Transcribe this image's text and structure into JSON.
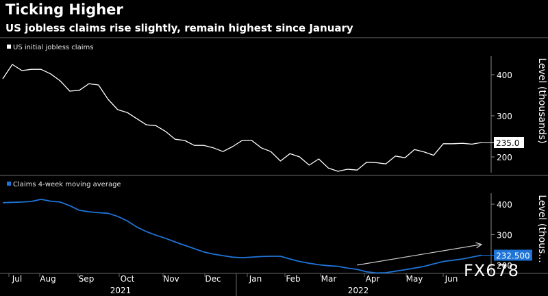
{
  "header": {
    "title": "Ticking Higher",
    "subtitle": "US jobless claims rise slightly, remain highest since January"
  },
  "watermark": "FX678",
  "colors": {
    "initial": "#ffffff",
    "average": "#1f74d8",
    "background": "#000000"
  },
  "chart_data": {
    "type": "line",
    "x_ticks": [
      "Jul",
      "Aug",
      "Sep",
      "Oct",
      "Nov",
      "Dec",
      "Jan",
      "Feb",
      "Mar",
      "Apr",
      "May",
      "Jun"
    ],
    "year_labels": [
      "2021",
      "2022"
    ],
    "panels": [
      {
        "legend": "US initial jobless claims",
        "ylabel": "Level (thousands)",
        "yticks": [
          200,
          300,
          400
        ],
        "ylim": [
          160,
          435
        ],
        "last_value_label": "235.0",
        "series": {
          "name": "US initial jobless claims",
          "color": "#ffffff",
          "values": [
            390,
            425,
            410,
            413,
            413,
            402,
            385,
            360,
            362,
            378,
            375,
            340,
            315,
            308,
            293,
            278,
            276,
            262,
            243,
            240,
            228,
            228,
            222,
            213,
            225,
            240,
            240,
            222,
            213,
            190,
            208,
            200,
            180,
            195,
            173,
            165,
            170,
            168,
            187,
            186,
            183,
            202,
            198,
            218,
            212,
            204,
            232,
            232,
            233,
            231,
            235
          ]
        }
      },
      {
        "legend": "Claims 4-week moving average",
        "ylabel": "Level (thous...",
        "yticks": [
          200,
          300,
          400
        ],
        "ylim": [
          175,
          445
        ],
        "last_value_label": "232.500",
        "series": {
          "name": "Claims 4-week moving average",
          "color": "#1f74d8",
          "values": [
            405,
            406,
            407,
            409,
            416,
            410,
            407,
            395,
            380,
            375,
            372,
            370,
            360,
            345,
            325,
            310,
            298,
            288,
            276,
            265,
            254,
            243,
            236,
            231,
            226,
            224,
            226,
            228,
            229,
            229,
            220,
            212,
            206,
            201,
            198,
            196,
            190,
            186,
            178,
            174,
            175,
            180,
            185,
            190,
            196,
            204,
            212,
            216,
            220,
            226,
            232.5
          ]
        }
      }
    ],
    "annotation": {
      "type": "trend-arrow",
      "start_week": 37,
      "start_value": 200,
      "end_week": 50,
      "end_value": 268
    }
  }
}
